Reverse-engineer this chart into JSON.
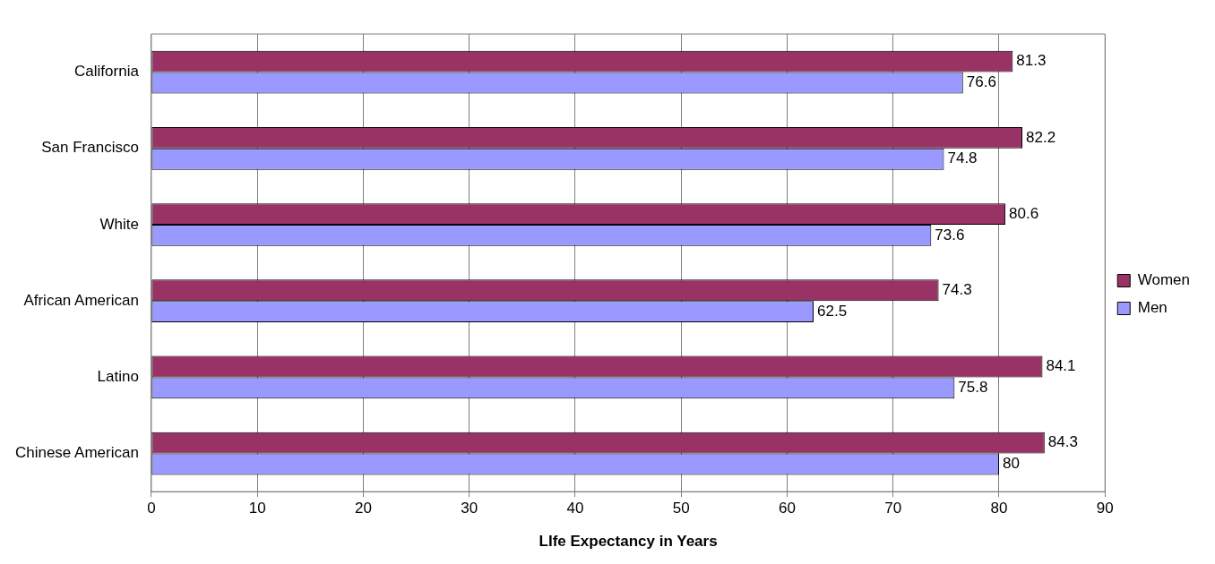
{
  "chart_data": {
    "type": "bar",
    "orientation": "horizontal",
    "xlabel": "LIfe Expectancy in Years",
    "categories": [
      "California",
      "San Francisco",
      "White",
      "African American",
      "Latino",
      "Chinese American"
    ],
    "series": [
      {
        "name": "Women",
        "color": "#993366",
        "values": [
          81.3,
          82.2,
          80.6,
          74.3,
          84.1,
          84.3
        ]
      },
      {
        "name": "Men",
        "color": "#9999ff",
        "values": [
          76.6,
          74.8,
          73.6,
          62.5,
          75.8,
          80
        ]
      }
    ],
    "xlim": [
      0,
      90
    ],
    "xticks": [
      0,
      10,
      20,
      30,
      40,
      50,
      60,
      70,
      80,
      90
    ],
    "grid": "x",
    "legend": "right",
    "data_labels": true
  }
}
